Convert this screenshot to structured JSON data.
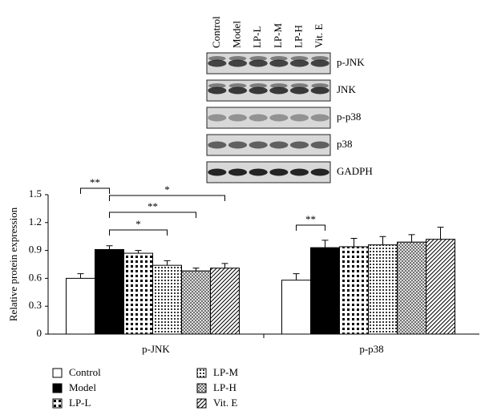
{
  "chart_data": {
    "type": "bar",
    "ylabel": "Relative protein expression",
    "categories": [
      "p-JNK",
      "p-p38"
    ],
    "series": [
      {
        "name": "Control",
        "color": "#ffffff",
        "values": [
          0.6,
          0.58
        ],
        "errors": [
          0.05,
          0.07
        ]
      },
      {
        "name": "Model",
        "color": "#000000",
        "values": [
          0.91,
          0.93
        ],
        "errors": [
          0.04,
          0.08
        ]
      },
      {
        "name": "LP-L",
        "color": "#ffffff",
        "values": [
          0.87,
          0.94
        ],
        "errors": [
          0.03,
          0.09
        ]
      },
      {
        "name": "LP-M",
        "color": "#ffffff",
        "values": [
          0.74,
          0.96
        ],
        "errors": [
          0.05,
          0.09
        ]
      },
      {
        "name": "LP-H",
        "color": "#ffffff",
        "values": [
          0.68,
          0.99
        ],
        "errors": [
          0.03,
          0.08
        ]
      },
      {
        "name": "Vit. E",
        "color": "#ffffff",
        "values": [
          0.71,
          1.02
        ],
        "errors": [
          0.05,
          0.13
        ]
      }
    ],
    "ylim": [
      0,
      1.5
    ],
    "yticks": [
      0,
      0.3,
      0.6,
      0.9,
      1.2,
      1.5
    ],
    "annotations": [
      {
        "text": "**",
        "category": "p-JNK",
        "between": [
          "Control",
          "Model"
        ]
      },
      {
        "text": "*",
        "category": "p-JNK",
        "between": [
          "Model",
          "Vit. E"
        ]
      },
      {
        "text": "**",
        "category": "p-JNK",
        "between": [
          "Model",
          "LP-H"
        ]
      },
      {
        "text": "*",
        "category": "p-JNK",
        "between": [
          "Model",
          "LP-M"
        ]
      },
      {
        "text": "**",
        "category": "p-p38",
        "between": [
          "Control",
          "Model"
        ]
      }
    ]
  },
  "blot": {
    "lanes": [
      "Control",
      "Model",
      "LP-L",
      "LP-M",
      "LP-H",
      "Vit. E"
    ],
    "rows": [
      "p-JNK",
      "JNK",
      "p-p38",
      "p38",
      "GADPH"
    ]
  }
}
